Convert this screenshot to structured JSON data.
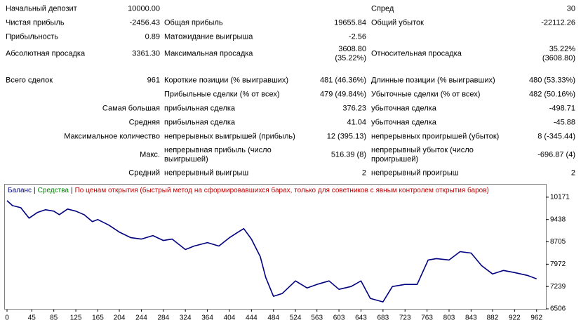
{
  "table": {
    "rows": [
      [
        "Начальный депозит",
        "10000.00",
        null,
        null,
        "Спред",
        "30"
      ],
      [
        "Чистая прибыль",
        "-2456.43",
        "Общая прибыль",
        "19655.84",
        "Общий убыток",
        "-22112.26"
      ],
      [
        "Прибыльность",
        "0.89",
        "Матожидание выигрыша",
        "-2.56",
        null,
        null
      ],
      [
        "Абсолютная просадка",
        "3361.30",
        "Максимальная просадка",
        "3608.80\n(35.22%)",
        "Относительная просадка",
        "35.22%\n(3608.80)"
      ],
      [
        "Всего сделок",
        "961",
        "Короткие позиции (% выигравших)",
        "481 (46.36%)",
        "Длинные позиции (% выигравших)",
        "480 (53.33%)"
      ],
      [
        null,
        null,
        "Прибыльные сделки (% от всех)",
        "479 (49.84%)",
        "Убыточные сделки (% от всех)",
        "482 (50.16%)"
      ],
      [
        null,
        "Самая большая",
        "прибыльная сделка",
        "376.23",
        "убыточная сделка",
        "-498.71"
      ],
      [
        null,
        "Средняя",
        "прибыльная сделка",
        "41.04",
        "убыточная сделка",
        "-45.88"
      ],
      [
        null,
        "Максимальное количество",
        "непрерывных выигрышей (прибыль)",
        "12 (395.13)",
        "непрерывных проигрышей (убыток)",
        "8 (-345.44)"
      ],
      [
        null,
        "Макс.",
        "непрерывная прибыль (число\nвыигрышей)",
        "516.39 (8)",
        "непрерывный убыток (число\nпроигрышей)",
        "-696.87 (4)"
      ],
      [
        null,
        "Средний",
        "непрерывный выигрыш",
        "2",
        "непрерывный проигрыш",
        "2"
      ]
    ]
  },
  "chart_data": {
    "type": "line",
    "annotations": [
      {
        "text": "|",
        "color": "#000000"
      },
      {
        "text": "Средства",
        "color": "#008000"
      },
      {
        "text": "|",
        "color": "#000000"
      },
      {
        "text": "По ценам открытия (быстрый метод на сформировавшихся барах, только для советников с явным контролем открытия баров)",
        "color": "#c00000"
      }
    ],
    "x": [
      0,
      10,
      25,
      40,
      55,
      70,
      85,
      95,
      110,
      125,
      140,
      155,
      165,
      185,
      204,
      225,
      244,
      265,
      284,
      300,
      324,
      340,
      364,
      385,
      404,
      420,
      430,
      444,
      460,
      470,
      484,
      500,
      524,
      545,
      563,
      585,
      603,
      625,
      643,
      660,
      683,
      700,
      723,
      745,
      765,
      780,
      803,
      823,
      843,
      862,
      882,
      902,
      922,
      945,
      962
    ],
    "series": [
      {
        "name": "Баланс",
        "color": "#000080",
        "values": [
          10056,
          9895,
          9826,
          9483,
          9666,
          9758,
          9712,
          9598,
          9781,
          9712,
          9598,
          9369,
          9437,
          9254,
          9025,
          8842,
          8796,
          8911,
          8750,
          8796,
          8452,
          8567,
          8681,
          8567,
          8842,
          9025,
          9139,
          8796,
          8223,
          7537,
          6918,
          7010,
          7422,
          7193,
          7308,
          7422,
          7147,
          7239,
          7422,
          6850,
          6735,
          7239,
          7308,
          7308,
          8109,
          8155,
          8109,
          8384,
          8338,
          7926,
          7651,
          7766,
          7697,
          7605,
          7491
        ]
      }
    ],
    "xlim": [
      0,
      977
    ],
    "xticks": [
      0,
      45,
      85,
      125,
      165,
      204,
      244,
      284,
      324,
      364,
      404,
      444,
      484,
      524,
      563,
      603,
      643,
      683,
      723,
      763,
      803,
      843,
      882,
      922,
      962
    ],
    "ylim": [
      6506,
      10583
    ],
    "yticks": [
      6506,
      7239,
      7972,
      8705,
      9438,
      10171
    ],
    "grid": false
  }
}
